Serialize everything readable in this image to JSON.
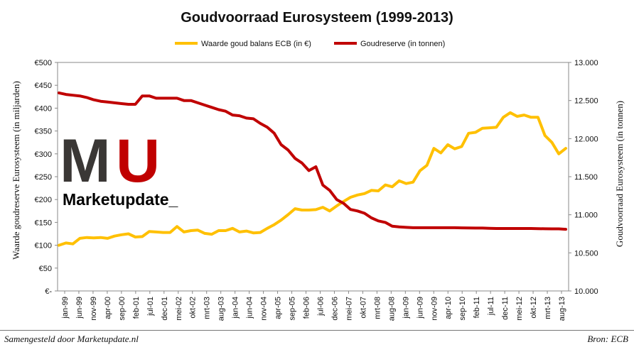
{
  "chart_data": {
    "type": "line",
    "title": "Goudvoorraad Eurosysteem (1999-2013)",
    "ylabel_left": "Waarde goudreserve Eurosysteem (in miljarden)",
    "ylabel_right": "Goudvoorraad Eurosysteem (in tonnen)",
    "ylim_left": [
      0,
      500
    ],
    "ylim_right": [
      10000,
      13000
    ],
    "yticks_left": [
      "€-",
      "€50",
      "€100",
      "€150",
      "€200",
      "€250",
      "€300",
      "€350",
      "€400",
      "€450",
      "€500"
    ],
    "yticks_right": [
      "10.000",
      "10.500",
      "11.000",
      "11.500",
      "12.000",
      "12.500",
      "13.000"
    ],
    "x_tick_labels": [
      "jan-99",
      "jun-99",
      "nov-99",
      "apr-00",
      "sep-00",
      "feb-01",
      "jul-01",
      "dec-01",
      "mei-02",
      "okt-02",
      "mrt-03",
      "aug-03",
      "jan-04",
      "jun-04",
      "nov-04",
      "apr-05",
      "sep-05",
      "feb-06",
      "jul-06",
      "dec-06",
      "mei-07",
      "okt-07",
      "mrt-08",
      "aug-08",
      "jan-09",
      "jun-09",
      "nov-09",
      "apr-10",
      "sep-10",
      "feb-11",
      "jul-11",
      "dec-11",
      "mei-12",
      "okt-12",
      "mrt-13",
      "aug-13"
    ],
    "legend_position": "top",
    "series": [
      {
        "name": "Waarde goud balans ECB (in €)",
        "axis": "left",
        "color": "#FFC000",
        "values": [
          100,
          105,
          103,
          115,
          117,
          116,
          117,
          115,
          120,
          123,
          125,
          118,
          119,
          130,
          129,
          128,
          128,
          141,
          129,
          132,
          133,
          126,
          124,
          132,
          132,
          137,
          129,
          131,
          127,
          128,
          137,
          145,
          155,
          167,
          180,
          177,
          177,
          178,
          183,
          175,
          186,
          196,
          205,
          210,
          213,
          220,
          219,
          232,
          228,
          241,
          235,
          238,
          263,
          275,
          312,
          302,
          320,
          311,
          316,
          345,
          347,
          356,
          357,
          358,
          380,
          390,
          382,
          385,
          380,
          380,
          340,
          325,
          300,
          312
        ]
      },
      {
        "name": "Goudreserve (in tonnen)",
        "axis": "right",
        "color": "#C00000",
        "values": [
          12600,
          12580,
          12570,
          12560,
          12540,
          12510,
          12490,
          12480,
          12470,
          12460,
          12450,
          12450,
          12560,
          12560,
          12530,
          12530,
          12530,
          12530,
          12500,
          12500,
          12470,
          12440,
          12410,
          12380,
          12360,
          12310,
          12300,
          12270,
          12260,
          12200,
          12150,
          12070,
          11920,
          11850,
          11740,
          11680,
          11580,
          11630,
          11390,
          11320,
          11200,
          11150,
          11070,
          11050,
          11020,
          10960,
          10920,
          10900,
          10850,
          10840,
          10835,
          10830,
          10830,
          10830,
          10830,
          10830,
          10830,
          10830,
          10828,
          10826,
          10825,
          10825,
          10822,
          10820,
          10820,
          10820,
          10820,
          10820,
          10820,
          10818,
          10816,
          10815,
          10815,
          10810
        ]
      }
    ]
  },
  "logo": {
    "letters": "MU",
    "subtitle": "Marketupdate_"
  },
  "footer": {
    "left": "Samengesteld door Marketupdate.nl",
    "right": "Bron: ECB"
  },
  "colors": {
    "gold": "#FFC000",
    "red": "#C00000",
    "logo_dark": "#3a3735",
    "logo_red": "#C00000"
  }
}
